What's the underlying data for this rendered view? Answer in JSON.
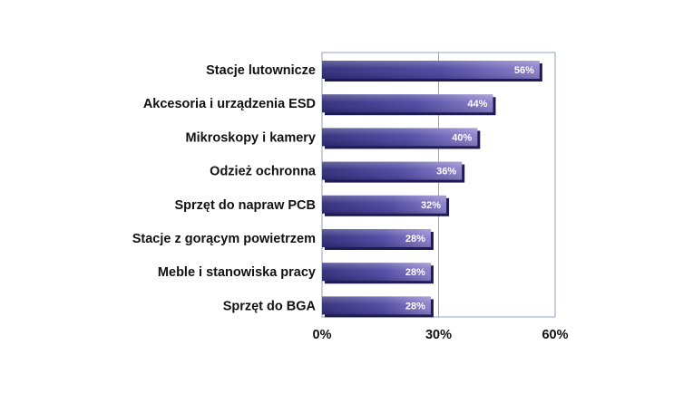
{
  "chart_data": {
    "type": "bar",
    "orientation": "horizontal",
    "categories": [
      "Stacje lutownicze",
      "Akcesoria i urządzenia ESD",
      "Mikroskopy i kamery",
      "Odzież ochronna",
      "Sprzęt do napraw PCB",
      "Stacje z gorącym powietrzem",
      "Meble i stanowiska pracy",
      "Sprzęt do BGA"
    ],
    "values": [
      56,
      44,
      40,
      36,
      32,
      28,
      28,
      28
    ],
    "value_labels": [
      "56%",
      "44%",
      "40%",
      "36%",
      "32%",
      "28%",
      "28%",
      "28%"
    ],
    "xlim": [
      0,
      60
    ],
    "x_ticks": [
      0,
      30,
      60
    ],
    "x_tick_labels": [
      "0%",
      "30%",
      "60%"
    ],
    "grid": "vertical at 30%",
    "legend": "none",
    "colors": {
      "bar_dark": "#2e2a78",
      "bar_mid": "#4b45a0",
      "bar_light": "#8a7fcb",
      "gridline": "#99a6c4",
      "plot_border": "#8fa3c4",
      "label_text": "#111111",
      "value_text": "#ffffff"
    }
  }
}
